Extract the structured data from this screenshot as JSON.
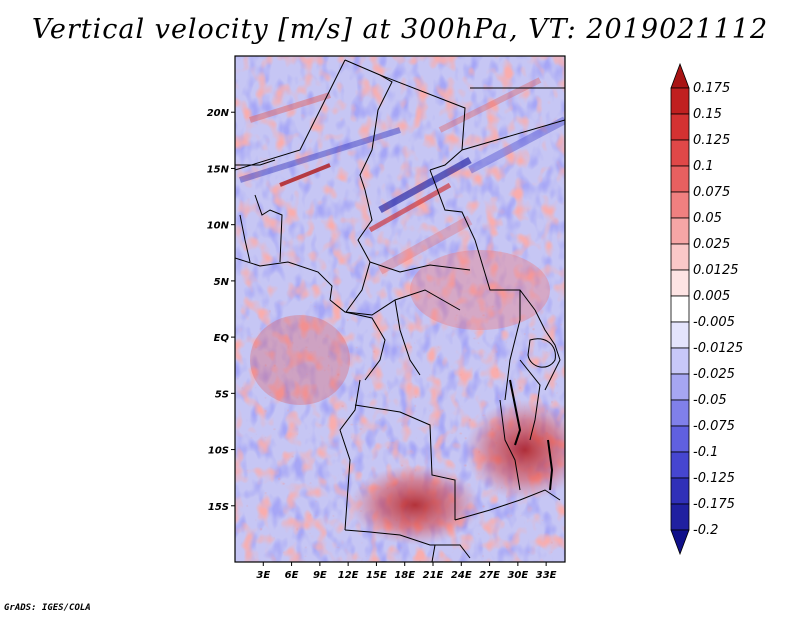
{
  "title": "Vertical velocity [m/s] at 300hPa, VT: 2019021112",
  "credit": "GrADS: IGES/COLA",
  "map": {
    "lat_labels": [
      {
        "lat": 20,
        "label": "20N"
      },
      {
        "lat": 15,
        "label": "15N"
      },
      {
        "lat": 10,
        "label": "10N"
      },
      {
        "lat": 5,
        "label": "5N"
      },
      {
        "lat": 0,
        "label": "EQ"
      },
      {
        "lat": -5,
        "label": "5S"
      },
      {
        "lat": -10,
        "label": "10S"
      },
      {
        "lat": -15,
        "label": "15S"
      }
    ],
    "lon_labels": [
      {
        "lon": 3,
        "label": "3E"
      },
      {
        "lon": 6,
        "label": "6E"
      },
      {
        "lon": 9,
        "label": "9E"
      },
      {
        "lon": 12,
        "label": "12E"
      },
      {
        "lon": 15,
        "label": "15E"
      },
      {
        "lon": 18,
        "label": "18E"
      },
      {
        "lon": 21,
        "label": "21E"
      },
      {
        "lon": 24,
        "label": "24E"
      },
      {
        "lon": 27,
        "label": "27E"
      },
      {
        "lon": 30,
        "label": "30E"
      },
      {
        "lon": 33,
        "label": "33E"
      }
    ],
    "lon_range": [
      0,
      35
    ],
    "lat_range": [
      -20,
      25
    ]
  },
  "colorbar": {
    "labels": [
      "0.175",
      "0.15",
      "0.125",
      "0.1",
      "0.075",
      "0.05",
      "0.025",
      "0.0125",
      "0.005",
      "-0.005",
      "-0.0125",
      "-0.025",
      "-0.05",
      "-0.075",
      "-0.1",
      "-0.125",
      "-0.175",
      "-0.2"
    ],
    "colors": [
      "#a81414",
      "#c02020",
      "#d43232",
      "#e04848",
      "#e86060",
      "#f08080",
      "#f6a6a6",
      "#fac8c8",
      "#fde4e4",
      "#ffffff",
      "#e4e4fc",
      "#c8c8f8",
      "#a6a6f2",
      "#8080ea",
      "#6060e0",
      "#4646d0",
      "#3030b8",
      "#2020a0",
      "#10108a"
    ]
  }
}
